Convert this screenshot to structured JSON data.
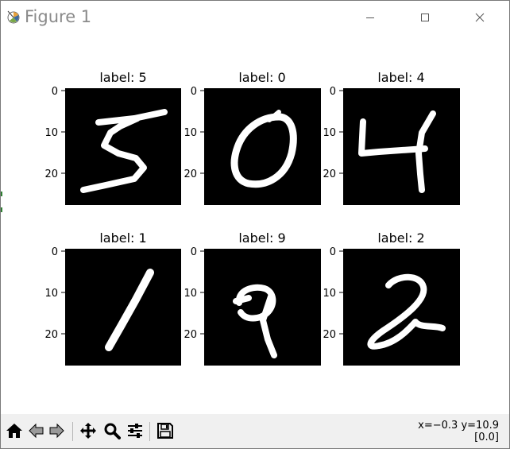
{
  "window": {
    "title": "Figure 1"
  },
  "figure": {
    "subplots": [
      {
        "title": "label: 5"
      },
      {
        "title": "label: 0"
      },
      {
        "title": "label: 4"
      },
      {
        "title": "label: 1"
      },
      {
        "title": "label: 9"
      },
      {
        "title": "label: 2"
      }
    ],
    "y_ticks": [
      "0",
      "10",
      "20"
    ],
    "image_bg": "#000000",
    "stroke_color": "#ffffff"
  },
  "toolbar": {
    "tools": [
      {
        "icon": "home-icon"
      },
      {
        "icon": "back-arrow-icon"
      },
      {
        "icon": "forward-arrow-icon"
      },
      {
        "icon": "pan-icon"
      },
      {
        "icon": "zoom-icon"
      },
      {
        "icon": "configure-subplots-icon"
      },
      {
        "icon": "save-icon"
      }
    ]
  },
  "status": {
    "coords_line1": "x=−0.3 y=10.9",
    "coords_line2": "[0.0]"
  }
}
